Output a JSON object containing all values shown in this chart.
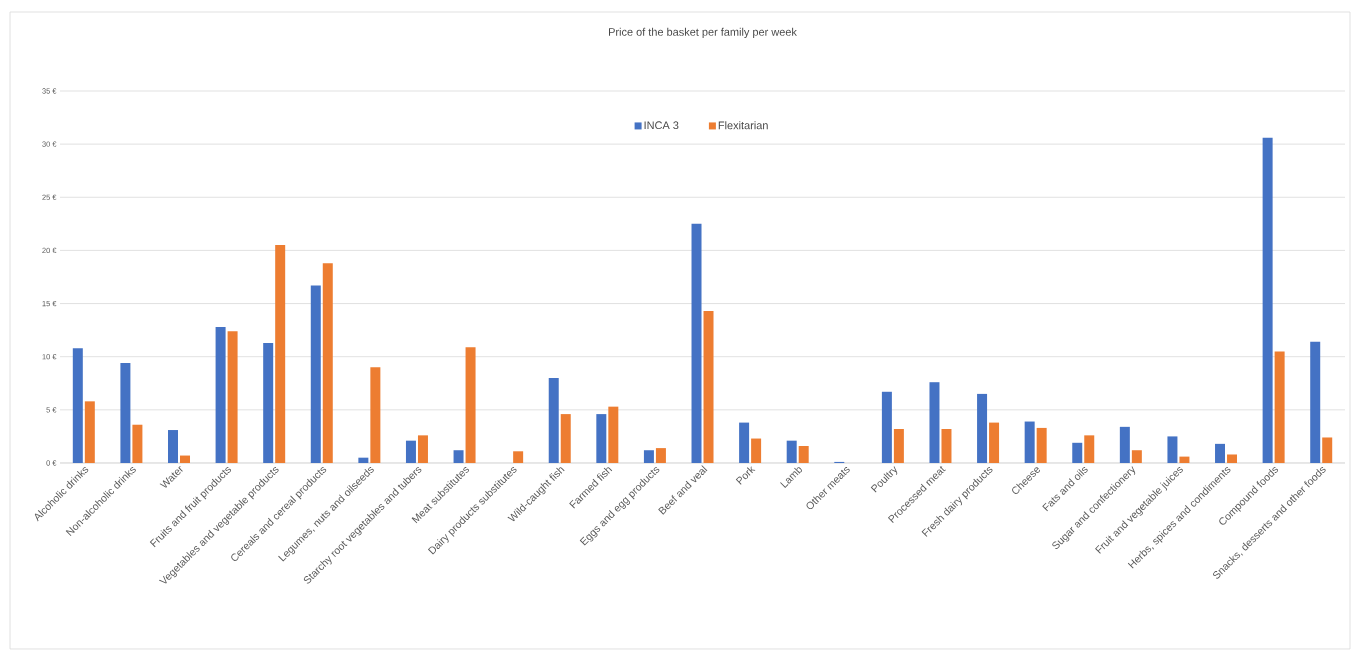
{
  "chart_data": {
    "type": "bar",
    "title": "Price of the basket per family per week",
    "categories": [
      "Alcoholic drinks",
      "Non-alcoholic drinks",
      "Water",
      "Fruits and fruit products",
      "Vegetables and vegetable products",
      "Cereals and cereal products",
      "Legumes, nuts and oilseeds",
      "Starchy root vegetables and tubers",
      "Meat substitutes",
      "Dairy products substitutes",
      "Wild-caught fish",
      "Farmed fish",
      "Eggs and egg products",
      "Beef and veal",
      "Pork",
      "Lamb",
      "Other meats",
      "Poultry",
      "Processed meat",
      "Fresh dairy products",
      "Cheese",
      "Fats and oils",
      "Sugar and confectionery",
      "Fruit and vegetable juices",
      "Herbs, spices and condiments",
      "Compound foods",
      "Snacks, desserts and other foods"
    ],
    "series": [
      {
        "name": "INCA 3",
        "color": "#4472c4",
        "values": [
          10.8,
          9.4,
          3.1,
          12.8,
          11.3,
          16.7,
          0.5,
          2.1,
          1.2,
          0,
          8.0,
          4.6,
          1.2,
          22.5,
          3.8,
          2.1,
          0.1,
          6.7,
          7.6,
          6.5,
          3.9,
          1.9,
          3.4,
          2.5,
          1.8,
          30.6,
          11.4
        ]
      },
      {
        "name": "Flexitarian",
        "color": "#ed7d31",
        "values": [
          5.8,
          3.6,
          0.7,
          12.4,
          20.5,
          18.8,
          9.0,
          2.6,
          10.9,
          1.1,
          4.6,
          5.3,
          1.4,
          14.3,
          2.3,
          1.6,
          0,
          3.2,
          3.2,
          3.8,
          3.3,
          2.6,
          1.2,
          0.6,
          0.8,
          10.5,
          2.4
        ]
      }
    ],
    "ylim": [
      0,
      35
    ],
    "yticks": [
      {
        "value": 0,
        "label": "0 €"
      },
      {
        "value": 5,
        "label": "5 €"
      },
      {
        "value": 10,
        "label": "10 €"
      },
      {
        "value": 15,
        "label": "15 €"
      },
      {
        "value": 20,
        "label": "20 €"
      },
      {
        "value": 25,
        "label": "25 €"
      },
      {
        "value": 30,
        "label": "30 €"
      },
      {
        "value": 35,
        "label": "35 €"
      }
    ],
    "grid": "y",
    "legend": "top"
  }
}
